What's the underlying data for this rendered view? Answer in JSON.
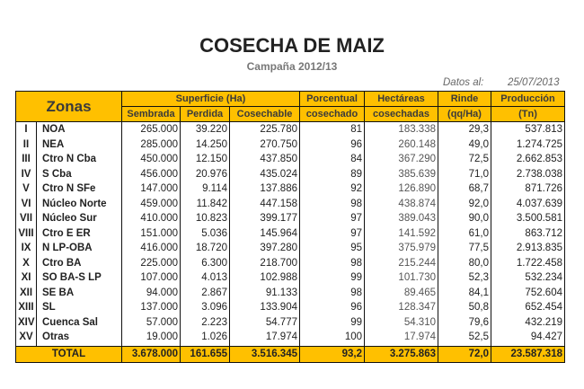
{
  "title": "COSECHA DE MAIZ",
  "subtitle": "Campaña 2012/13",
  "datos_label": "Datos al:",
  "datos_date": "25/07/2013",
  "headers": {
    "zonas": "Zonas",
    "superficie": "Superficie (Ha)",
    "sembrada": "Sembrada",
    "perdida": "Perdida",
    "cosechable": "Cosechable",
    "porcentual_1": "Porcentual",
    "porcentual_2": "cosechado",
    "hectareas_1": "Hectáreas",
    "hectareas_2": "cosechadas",
    "rinde_1": "Rinde",
    "rinde_2": "(qq/Ha)",
    "produccion_1": "Producción",
    "produccion_2": "(Tn)"
  },
  "rows": [
    [
      "I",
      "NOA",
      "265.000",
      "39.220",
      "225.780",
      "81",
      "183.338",
      "29,3",
      "537.813"
    ],
    [
      "II",
      "NEA",
      "285.000",
      "14.250",
      "270.750",
      "96",
      "260.148",
      "49,0",
      "1.274.725"
    ],
    [
      "III",
      "Ctro N Cba",
      "450.000",
      "12.150",
      "437.850",
      "84",
      "367.290",
      "72,5",
      "2.662.853"
    ],
    [
      "IV",
      "S Cba",
      "456.000",
      "20.976",
      "435.024",
      "89",
      "385.639",
      "71,0",
      "2.738.038"
    ],
    [
      "V",
      "Ctro N SFe",
      "147.000",
      "9.114",
      "137.886",
      "92",
      "126.890",
      "68,7",
      "871.726"
    ],
    [
      "VI",
      "Núcleo Norte",
      "459.000",
      "11.842",
      "447.158",
      "98",
      "438.874",
      "92,0",
      "4.037.639"
    ],
    [
      "VII",
      "Núcleo Sur",
      "410.000",
      "10.823",
      "399.177",
      "97",
      "389.043",
      "90,0",
      "3.500.581"
    ],
    [
      "VIII",
      "Ctro E ER",
      "151.000",
      "5.036",
      "145.964",
      "97",
      "141.592",
      "61,0",
      "863.712"
    ],
    [
      "IX",
      "N LP-OBA",
      "416.000",
      "18.720",
      "397.280",
      "95",
      "375.979",
      "77,5",
      "2.913.835"
    ],
    [
      "X",
      "Ctro BA",
      "225.000",
      "6.300",
      "218.700",
      "98",
      "215.244",
      "80,0",
      "1.722.458"
    ],
    [
      "XI",
      "SO BA-S LP",
      "107.000",
      "4.013",
      "102.988",
      "99",
      "101.730",
      "52,3",
      "532.234"
    ],
    [
      "XII",
      "SE BA",
      "94.000",
      "2.867",
      "91.133",
      "98",
      "89.465",
      "84,1",
      "752.604"
    ],
    [
      "XIII",
      "SL",
      "137.000",
      "3.096",
      "133.904",
      "96",
      "128.347",
      "50,8",
      "652.454"
    ],
    [
      "XIV",
      "Cuenca Sal",
      "57.000",
      "2.223",
      "54.777",
      "99",
      "54.310",
      "79,6",
      "432.219"
    ],
    [
      "XV",
      "Otras",
      "19.000",
      "1.026",
      "17.974",
      "100",
      "17.974",
      "52,5",
      "94.427"
    ]
  ],
  "total": [
    "TOTAL",
    "3.678.000",
    "161.655",
    "3.516.345",
    "93,2",
    "3.275.863",
    "72,0",
    "23.587.318"
  ],
  "colors": {
    "header_bg": "#ffc000",
    "border": "#111111"
  }
}
